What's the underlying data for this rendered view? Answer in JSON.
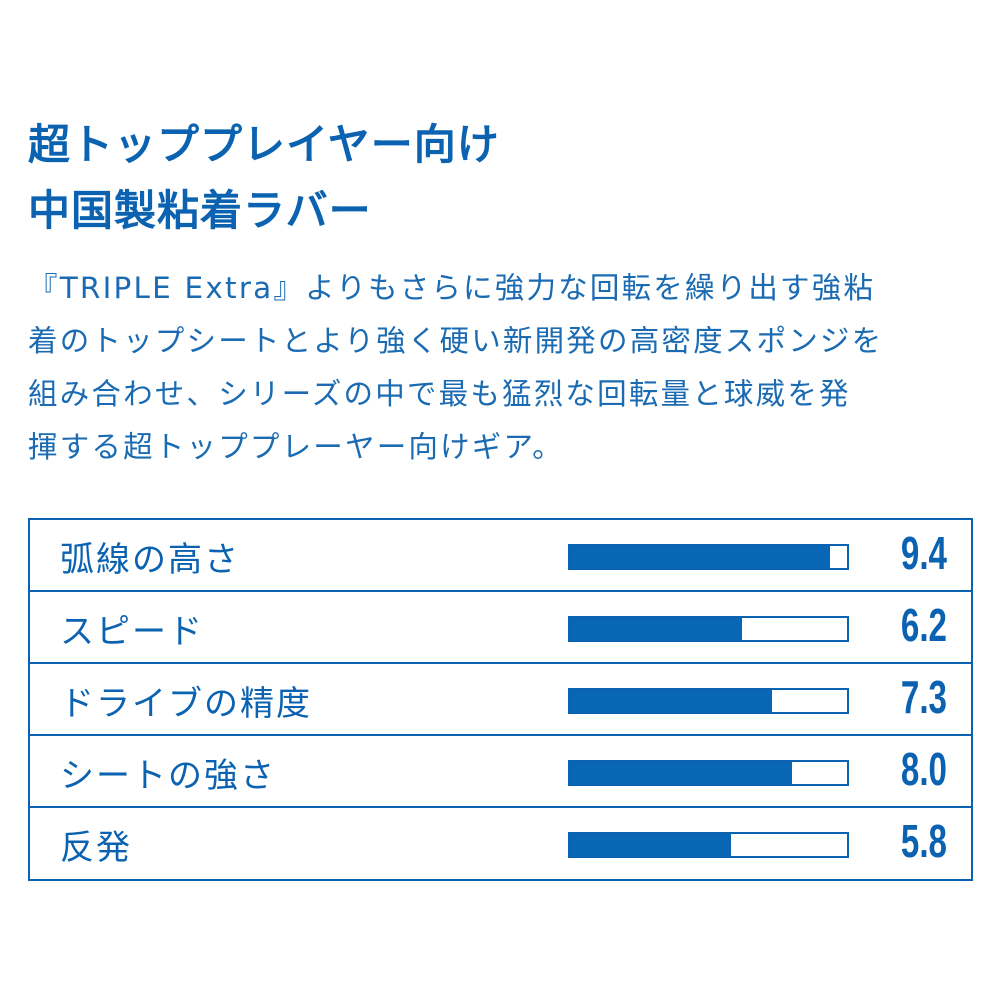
{
  "title_lines": [
    "超トッププレイヤー向け",
    "中国製粘着ラバー"
  ],
  "description_lines": [
    "『TRIPLE Extra』よりもさらに強力な回転を繰り出す強粘",
    "着のトップシートとより強く硬い新開発の高密度スポンジを",
    "組み合わせ、シリーズの中で最も猛烈な回転量と球威を発",
    "揮する超トッププレーヤー向けギア。"
  ],
  "colors": {
    "accent": "#0a62b0",
    "bar": "#0866b4"
  },
  "chart_data": {
    "type": "bar",
    "orientation": "horizontal",
    "categories": [
      "弧線の高さ",
      "スピード",
      "ドライブの精度",
      "シートの強さ",
      "反発"
    ],
    "values": [
      9.4,
      6.2,
      7.3,
      8.0,
      5.8
    ],
    "value_labels": [
      "9.4",
      "6.2",
      "7.3",
      "8.0",
      "5.8"
    ],
    "xlim": [
      0,
      10
    ]
  }
}
